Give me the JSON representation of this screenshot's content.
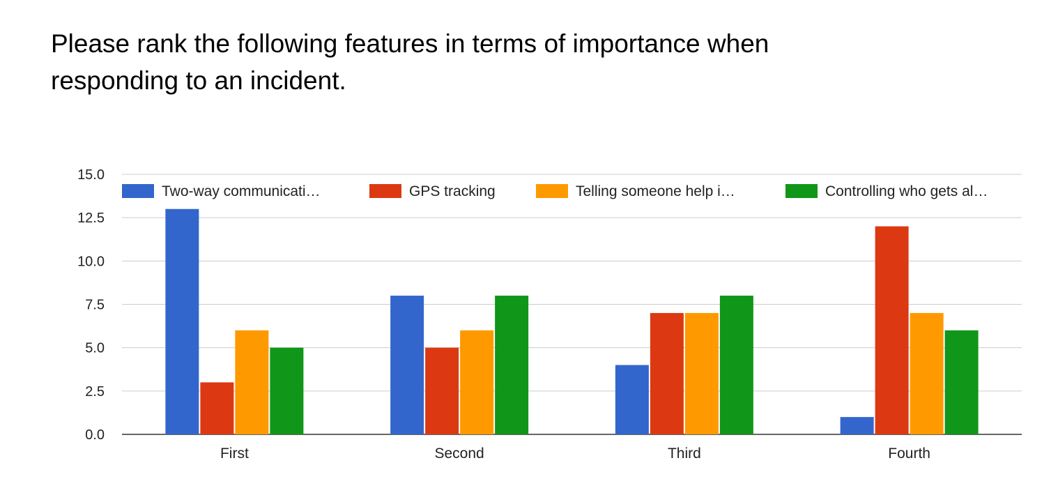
{
  "title": "Please rank the following features in terms of importance when responding to an incident.",
  "chart_data": {
    "type": "bar",
    "title": "Please rank the following features in terms of importance when responding to an incident.",
    "xlabel": "",
    "ylabel": "",
    "categories": [
      "First",
      "Second",
      "Third",
      "Fourth"
    ],
    "ylim": [
      0,
      15
    ],
    "yticks": [
      "0.0",
      "2.5",
      "5.0",
      "7.5",
      "10.0",
      "12.5",
      "15.0"
    ],
    "grid": true,
    "legend_position": "top",
    "series": [
      {
        "name": "Two-way communicati…",
        "color": "#3366cc",
        "values": [
          13,
          8,
          4,
          1
        ]
      },
      {
        "name": "GPS tracking",
        "color": "#dc3912",
        "values": [
          3,
          5,
          7,
          12
        ]
      },
      {
        "name": "Telling someone help i…",
        "color": "#ff9900",
        "values": [
          6,
          6,
          7,
          7
        ]
      },
      {
        "name": "Controlling who gets al…",
        "color": "#109618",
        "values": [
          5,
          8,
          8,
          6
        ]
      }
    ]
  }
}
